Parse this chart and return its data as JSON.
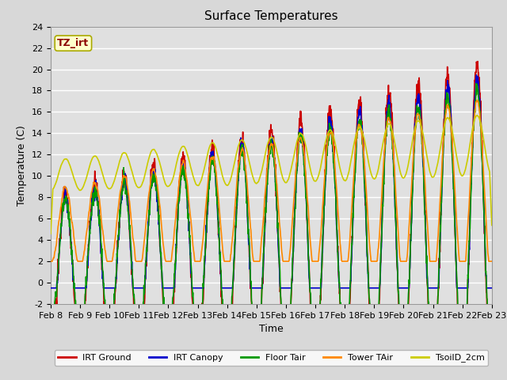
{
  "title": "Surface Temperatures",
  "xlabel": "Time",
  "ylabel": "Temperature (C)",
  "ylim": [
    -2,
    24
  ],
  "yticks": [
    -2,
    0,
    2,
    4,
    6,
    8,
    10,
    12,
    14,
    16,
    18,
    20,
    22,
    24
  ],
  "legend_labels": [
    "IRT Ground",
    "IRT Canopy",
    "Floor Tair",
    "Tower TAir",
    "TsoilD_2cm"
  ],
  "line_colors": [
    "#cc0000",
    "#0000cc",
    "#009900",
    "#ff8800",
    "#cccc00"
  ],
  "line_widths": [
    1.2,
    1.2,
    1.2,
    1.2,
    1.2
  ],
  "fig_bg_color": "#d8d8d8",
  "plot_bg_color": "#e0e0e0",
  "grid_color": "#ffffff",
  "title_fontsize": 11,
  "axis_label_fontsize": 9,
  "tick_label_fontsize": 8,
  "annotation_text": "TZ_irt",
  "annotation_color": "#8b0000",
  "annotation_bg": "#ffffcc",
  "annotation_border": "#aaaa00",
  "n_days": 15,
  "n_points": 1440
}
